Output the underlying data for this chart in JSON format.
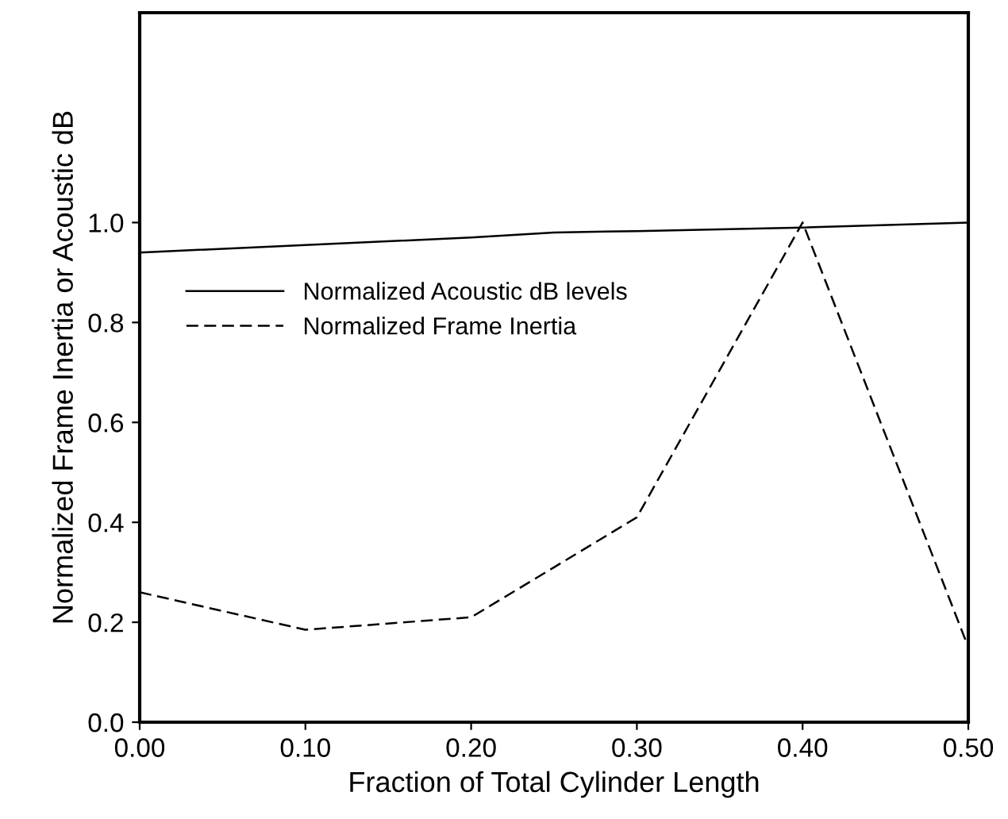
{
  "chart_data": {
    "type": "line",
    "xlabel": "Fraction of Total Cylinder Length",
    "ylabel": "Normalized Frame Inertia or Acoustic dB",
    "series": [
      {
        "name": "Normalized Acoustic dB levels",
        "color": "#000000",
        "line_style": "solid",
        "x": [
          0.0,
          0.1,
          0.2,
          0.25,
          0.3,
          0.4,
          0.5
        ],
        "values": [
          0.94,
          0.955,
          0.97,
          0.98,
          0.983,
          0.99,
          1.0
        ]
      },
      {
        "name": "Normalized Frame Inertia",
        "color": "#000000",
        "line_style": "dashed",
        "x": [
          0.0,
          0.1,
          0.2,
          0.25,
          0.3,
          0.4,
          0.5
        ],
        "values": [
          0.26,
          0.185,
          0.21,
          0.31,
          0.41,
          1.0,
          0.15
        ]
      }
    ],
    "xlim": [
      0.0,
      0.5
    ],
    "xticks": [
      {
        "value": 0,
        "label": "0.00"
      },
      {
        "value": 0.1,
        "label": "0.10"
      },
      {
        "value": 0.2,
        "label": "0.20"
      },
      {
        "value": 0.3,
        "label": "0.30"
      },
      {
        "value": 0.4,
        "label": "0.40"
      },
      {
        "value": 0.5,
        "label": "0.50"
      }
    ],
    "ylim": [
      0.0,
      1.42
    ],
    "yticks": [
      {
        "value": 0,
        "label": "0.0"
      },
      {
        "value": 0.2,
        "label": "0.2"
      },
      {
        "value": 0.4,
        "label": "0.4"
      },
      {
        "value": 0.6,
        "label": "0.6"
      },
      {
        "value": 0.8,
        "label": "0.8"
      },
      {
        "value": 1.0,
        "label": "1.0"
      }
    ],
    "grid": false,
    "legend": "left",
    "marker": "none"
  }
}
